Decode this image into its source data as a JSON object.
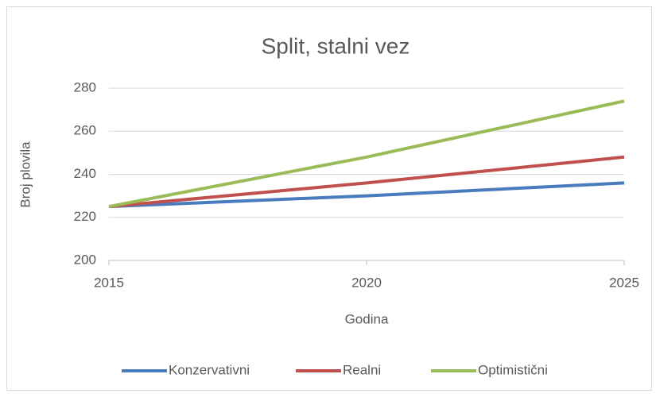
{
  "chart_data": {
    "type": "line",
    "title": "Split, stalni vez",
    "x_label": "Godina",
    "y_label": "Broj plovila",
    "x": [
      2015,
      2020,
      2025
    ],
    "series": [
      {
        "name": "Konzervativni",
        "color": "#4a7bbf",
        "values": [
          225,
          230,
          236
        ]
      },
      {
        "name": "Realni",
        "color": "#c0504d",
        "values": [
          225,
          236,
          248
        ]
      },
      {
        "name": "Optimistični",
        "color": "#9bbb59",
        "values": [
          225,
          248,
          274
        ]
      }
    ],
    "xlim": [
      2015,
      2025
    ],
    "xticks": [
      2015,
      2020,
      2025
    ],
    "ylim": [
      200,
      280
    ],
    "yticks": [
      200,
      220,
      240,
      260,
      280
    ],
    "grid": true,
    "legend": "bottom"
  }
}
